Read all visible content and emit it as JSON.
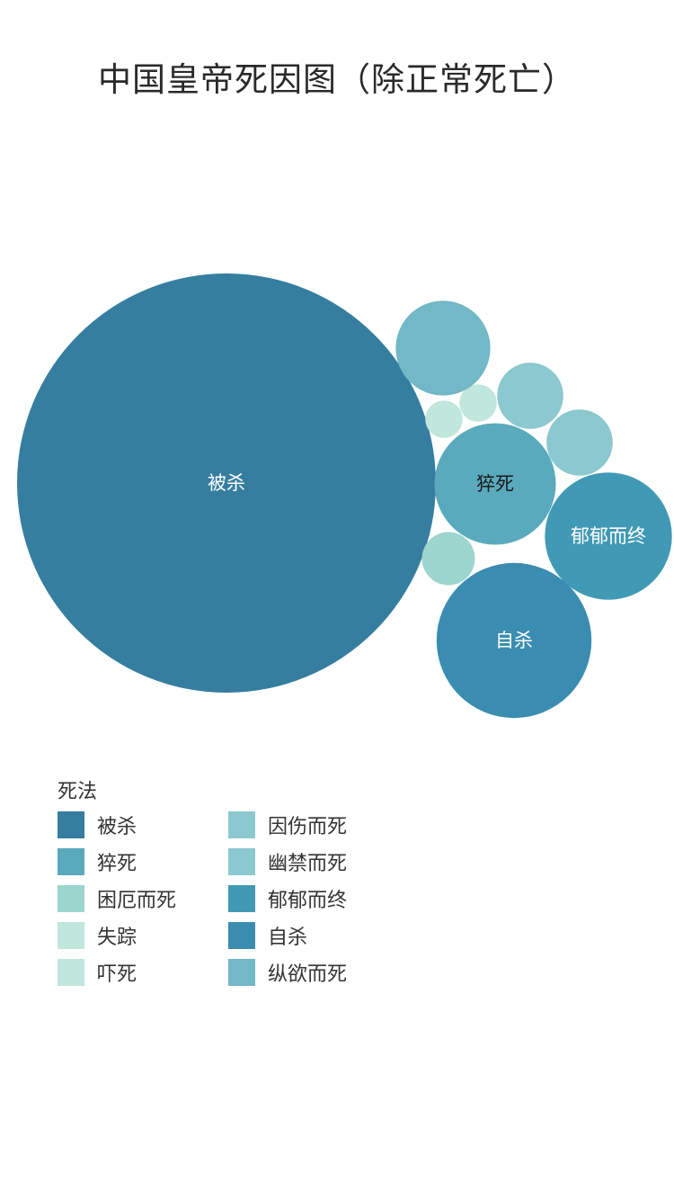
{
  "title": "中国皇帝死因图（除正常死亡）",
  "legend": {
    "title": "死法",
    "items": [
      {
        "label": "被杀",
        "color": "#357ea0"
      },
      {
        "label": "猝死",
        "color": "#5aaabe"
      },
      {
        "label": "困厄而死",
        "color": "#9dd5cf"
      },
      {
        "label": "失踪",
        "color": "#c1e6dc"
      },
      {
        "label": "吓死",
        "color": "#c1e6dc"
      },
      {
        "label": "因伤而死",
        "color": "#8cc8cf"
      },
      {
        "label": "幽禁而死",
        "color": "#8cc8cf"
      },
      {
        "label": "郁郁而终",
        "color": "#419ab5"
      },
      {
        "label": "自杀",
        "color": "#3a8db0"
      },
      {
        "label": "纵欲而死",
        "color": "#72b8c6"
      }
    ]
  },
  "chart_data": {
    "type": "bubble",
    "title": "中国皇帝死因图（除正常死亡）",
    "legend_title": "死法",
    "legend_position": "bottom-left",
    "series": [
      {
        "name": "被杀",
        "value": 100,
        "color": "#357ea0",
        "label": "被杀",
        "label_color": "#ffffff"
      },
      {
        "name": "猝死",
        "value": 8.4,
        "color": "#5aaabe",
        "label": "猝死",
        "label_color": "#1a1a1a"
      },
      {
        "name": "困厄而死",
        "value": 1.6,
        "color": "#9dd5cf",
        "label": "",
        "label_color": "#1a1a1a"
      },
      {
        "name": "失踪",
        "value": 0.8,
        "color": "#c1e6dc",
        "label": "",
        "label_color": "#1a1a1a"
      },
      {
        "name": "吓死",
        "value": 0.8,
        "color": "#c1e6dc",
        "label": "",
        "label_color": "#1a1a1a"
      },
      {
        "name": "因伤而死",
        "value": 2.5,
        "color": "#8cc8cf",
        "label": "",
        "label_color": "#1a1a1a"
      },
      {
        "name": "幽禁而死",
        "value": 2.5,
        "color": "#8cc8cf",
        "label": "",
        "label_color": "#1a1a1a"
      },
      {
        "name": "郁郁而终",
        "value": 9.2,
        "color": "#419ab5",
        "label": "郁郁而终",
        "label_color": "#ffffff"
      },
      {
        "name": "自杀",
        "value": 13.7,
        "color": "#3a8db0",
        "label": "自杀",
        "label_color": "#ffffff"
      },
      {
        "name": "纵欲而死",
        "value": 5.1,
        "color": "#72b8c6",
        "label": "",
        "label_color": "#1a1a1a"
      }
    ]
  }
}
